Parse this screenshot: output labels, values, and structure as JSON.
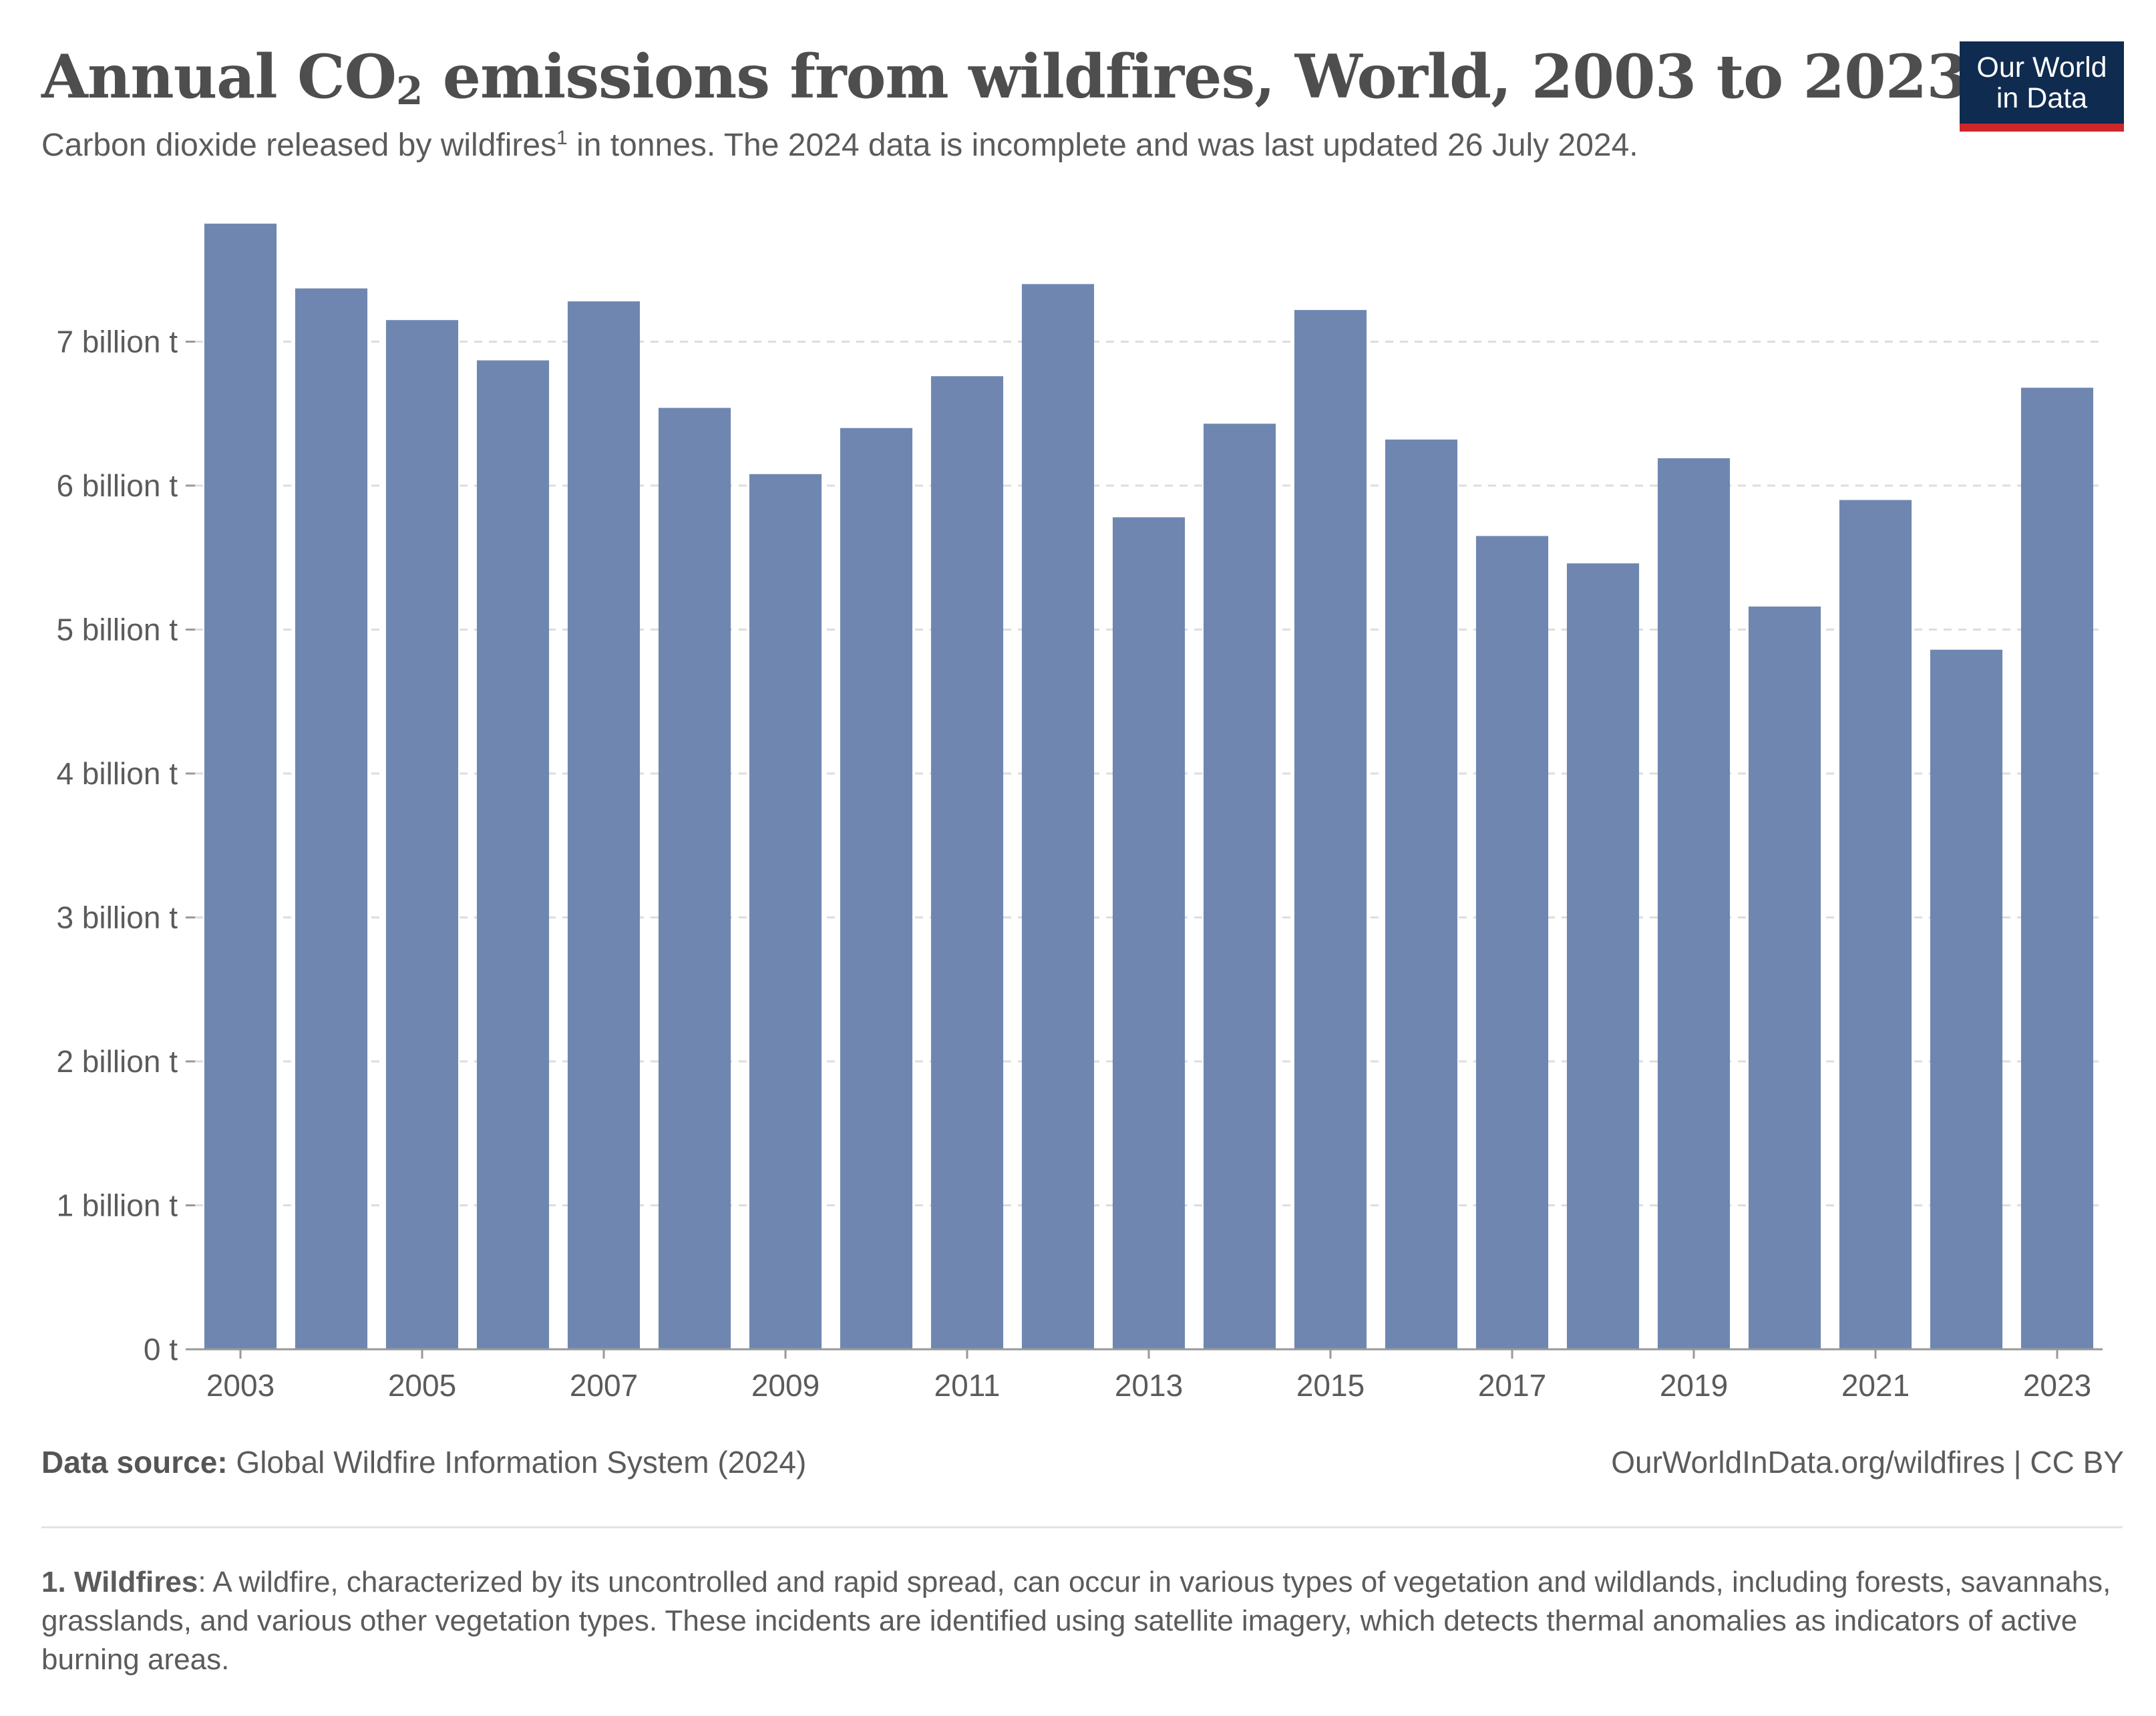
{
  "header": {
    "title_main": "Annual CO",
    "title_sub": "2",
    "title_rest": " emissions from wildfires, World, 2003 to 2023",
    "subtitle_a": "Carbon dioxide released by wildfires",
    "subtitle_sup": "1",
    "subtitle_b": " in tonnes. The 2024 data is incomplete and was last updated 26 July 2024."
  },
  "logo": {
    "line1": "Our World",
    "line2": "in Data"
  },
  "footer": {
    "source_label": "Data source:",
    "source_text": " Global Wildfire Information System (2024)",
    "credit": "OurWorldInData.org/wildfires  | CC BY",
    "footnote_label": "1. Wildfires",
    "footnote_text": ": A wildfire, characterized by its uncontrolled and rapid spread, can occur in various types of vegetation and wildlands, including forests, savannahs, grasslands, and various other vegetation types. These incidents are identified using satellite imagery, which detects thermal anomalies as indicators of active burning areas."
  },
  "colors": {
    "bar": "#6f87b0",
    "grid": "#dddddd",
    "axis": "#999999",
    "text": "#5b5b5b"
  },
  "chart_data": {
    "type": "bar",
    "categories": [
      "2003",
      "2004",
      "2005",
      "2006",
      "2007",
      "2008",
      "2009",
      "2010",
      "2011",
      "2012",
      "2013",
      "2014",
      "2015",
      "2016",
      "2017",
      "2018",
      "2019",
      "2020",
      "2021",
      "2022",
      "2023"
    ],
    "values": [
      7.82,
      7.37,
      7.15,
      6.87,
      7.28,
      6.54,
      6.08,
      6.4,
      6.76,
      7.4,
      5.78,
      6.43,
      7.22,
      6.32,
      5.65,
      5.46,
      6.19,
      5.16,
      5.9,
      4.86,
      6.68
    ],
    "unit": "billion tonnes",
    "x_tick_labels": [
      "2003",
      "2005",
      "2007",
      "2009",
      "2011",
      "2013",
      "2015",
      "2017",
      "2019",
      "2021",
      "2023"
    ],
    "y_tick_values": [
      0,
      1,
      2,
      3,
      4,
      5,
      6,
      7
    ],
    "y_tick_labels": [
      "0 t",
      "1 billion t",
      "2 billion t",
      "3 billion t",
      "4 billion t",
      "5 billion t",
      "6 billion t",
      "7 billion t"
    ],
    "ylim": [
      0,
      7.9
    ],
    "grid": true,
    "legend": "none"
  }
}
